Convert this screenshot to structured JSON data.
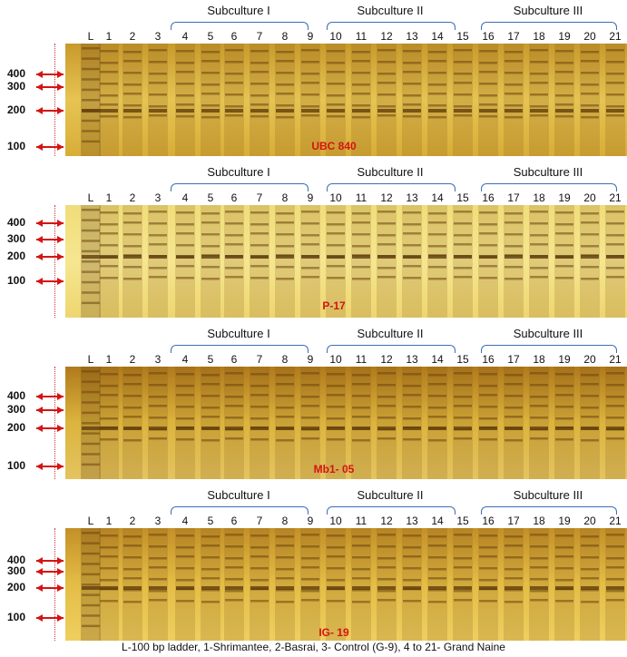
{
  "lane_labels": [
    "L",
    "1",
    "2",
    "3",
    "4",
    "5",
    "6",
    "7",
    "8",
    "9",
    "10",
    "11",
    "12",
    "13",
    "14",
    "15",
    "16",
    "17",
    "18",
    "19",
    "20",
    "21"
  ],
  "subcultures": [
    "Subculture I",
    "Subculture II",
    "Subculture III"
  ],
  "markers": {
    "m400": "400",
    "m300": "300",
    "m200": "200",
    "m100": "100"
  },
  "panels": [
    {
      "primer": "UBC 840",
      "markers": [
        "400",
        "300",
        "200",
        "100"
      ]
    },
    {
      "primer": "P-17",
      "markers": [
        "400",
        "300",
        "200",
        "100"
      ]
    },
    {
      "primer": "Mb1- 05",
      "markers": [
        "400",
        "300",
        "200",
        "100"
      ]
    },
    {
      "primer": "IG- 19",
      "markers": [
        "400",
        "300",
        "200",
        "100"
      ]
    }
  ],
  "caption": "L-100 bp ladder, 1-Shrimantee, 2-Basrai, 3- Control (G-9), 4 to 21- Grand Naine",
  "colors": {
    "gel_light": "#e8cf6a",
    "gel_dark": "#a07a1c",
    "band": "#7a4c0e",
    "arrow": "#d41414",
    "bracket": "#3b6fb6"
  }
}
